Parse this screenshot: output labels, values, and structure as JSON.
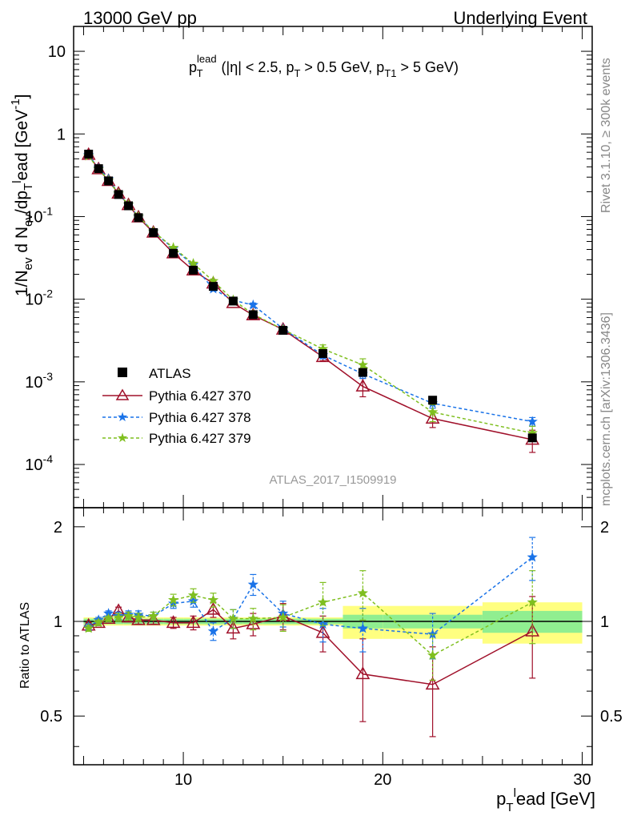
{
  "header": {
    "left": "13000 GeV pp",
    "right": "Underlying Event"
  },
  "side_labels": {
    "rivet": "Rivet 3.1.10, ≥ 300k events",
    "mcplots": "mcplots.cern.ch [arXiv:1306.3436]"
  },
  "analysis_tag": "ATLAS_2017_I1509919",
  "colors": {
    "atlas": "#000000",
    "p370": "#a0102a",
    "p378": "#1a73e8",
    "p379": "#7fbf1f",
    "band_inner": "#90ee90",
    "band_outer": "#ffff80"
  },
  "chart_data": [
    {
      "type": "scatter",
      "panel": "main",
      "title": "p_T^lead (|η| < 2.5, p_T > 0.5 GeV, p_T1 > 5 GeV)",
      "ylabel": "1/N_ev d N_ev/dp_T^lead [GeV^-1]",
      "ylog": true,
      "xlim": [
        4.5,
        30.5
      ],
      "ylim": [
        3e-05,
        20
      ],
      "y_ticks": [
        "10^-4",
        "10^-3",
        "10^-2",
        "10^-1",
        "1",
        "10"
      ],
      "legend_position": "lower-left",
      "series": [
        {
          "name": "ATLAS",
          "color": "#000000",
          "marker": "square",
          "x": [
            5.25,
            5.75,
            6.25,
            6.75,
            7.25,
            7.75,
            8.5,
            9.5,
            10.5,
            11.5,
            12.5,
            13.5,
            15,
            17,
            19,
            22.5,
            27.5
          ],
          "y": [
            0.57,
            0.38,
            0.27,
            0.185,
            0.135,
            0.097,
            0.064,
            0.036,
            0.0225,
            0.0143,
            0.0095,
            0.0065,
            0.0042,
            0.0022,
            0.0013,
            0.0006,
            0.00021
          ]
        },
        {
          "name": "Pythia 6.427 370",
          "color": "#a0102a",
          "marker": "triangle",
          "line": "solid",
          "x": [
            5.25,
            5.75,
            6.25,
            6.75,
            7.25,
            7.75,
            8.5,
            9.5,
            10.5,
            11.5,
            12.5,
            13.5,
            15,
            17,
            19,
            22.5,
            27.5
          ],
          "y": [
            0.56,
            0.375,
            0.27,
            0.19,
            0.138,
            0.098,
            0.064,
            0.036,
            0.0223,
            0.0155,
            0.009,
            0.0064,
            0.0043,
            0.002,
            0.00088,
            0.00036,
            0.0002
          ],
          "err": [
            0.01,
            0.007,
            0.005,
            0.004,
            0.003,
            0.002,
            0.0015,
            0.0009,
            0.0007,
            0.0006,
            0.0004,
            0.0004,
            0.0003,
            0.0002,
            0.00022,
            8e-05,
            6e-05
          ]
        },
        {
          "name": "Pythia 6.427 378",
          "color": "#1a73e8",
          "marker": "star",
          "line": "dashed",
          "x": [
            5.25,
            5.75,
            6.25,
            6.75,
            7.25,
            7.75,
            8.5,
            9.5,
            10.5,
            11.5,
            12.5,
            13.5,
            15,
            17,
            19,
            22.5,
            27.5
          ],
          "y": [
            0.555,
            0.385,
            0.285,
            0.19,
            0.14,
            0.1,
            0.066,
            0.041,
            0.026,
            0.0133,
            0.0097,
            0.0085,
            0.0044,
            0.0021,
            0.00125,
            0.00055,
            0.00033
          ],
          "err": [
            0.01,
            0.007,
            0.005,
            0.004,
            0.003,
            0.002,
            0.0015,
            0.001,
            0.0008,
            0.0006,
            0.0004,
            0.0005,
            0.0003,
            0.0002,
            0.00015,
            7e-05,
            4e-05
          ]
        },
        {
          "name": "Pythia 6.427 379",
          "color": "#7fbf1f",
          "marker": "star",
          "line": "dashed",
          "x": [
            5.25,
            5.75,
            6.25,
            6.75,
            7.25,
            7.75,
            8.5,
            9.5,
            10.5,
            11.5,
            12.5,
            13.5,
            15,
            17,
            19,
            22.5,
            27.5
          ],
          "y": [
            0.54,
            0.375,
            0.275,
            0.19,
            0.14,
            0.1,
            0.066,
            0.042,
            0.027,
            0.0166,
            0.0098,
            0.0066,
            0.0043,
            0.0025,
            0.0016,
            0.00043,
            0.00024
          ],
          "err": [
            0.01,
            0.007,
            0.005,
            0.004,
            0.003,
            0.002,
            0.0015,
            0.001,
            0.0008,
            0.0007,
            0.0004,
            0.0004,
            0.0003,
            0.0003,
            0.0003,
            0.0001,
            5e-05
          ]
        }
      ]
    },
    {
      "type": "scatter",
      "panel": "ratio",
      "ylabel": "Ratio to ATLAS",
      "xlabel": "p_T^lead [GeV]",
      "xlim": [
        4.5,
        30.5
      ],
      "ylim": [
        0.35,
        2.3
      ],
      "x_ticks": [
        10,
        20,
        30
      ],
      "y_ticks": [
        0.5,
        1,
        2
      ],
      "reference_band": {
        "edges": [
          5,
          5.5,
          6,
          6.5,
          7,
          7.5,
          8,
          9,
          10,
          11,
          12,
          13,
          14,
          16,
          18,
          20,
          25,
          30
        ],
        "inner": [
          0.02,
          0.02,
          0.02,
          0.02,
          0.02,
          0.02,
          0.02,
          0.02,
          0.02,
          0.02,
          0.02,
          0.02,
          0.02,
          0.02,
          0.05,
          0.05,
          0.08
        ],
        "outer": [
          0.03,
          0.03,
          0.03,
          0.03,
          0.03,
          0.03,
          0.03,
          0.03,
          0.03,
          0.03,
          0.03,
          0.03,
          0.03,
          0.03,
          0.12,
          0.12,
          0.15
        ]
      },
      "series": [
        {
          "name": "Pythia 6.427 370",
          "color": "#a0102a",
          "marker": "triangle",
          "line": "solid",
          "x": [
            5.25,
            5.75,
            6.25,
            6.75,
            7.25,
            7.75,
            8.5,
            9.5,
            10.5,
            11.5,
            12.5,
            13.5,
            15,
            17,
            19,
            22.5,
            27.5
          ],
          "y": [
            0.97,
            0.99,
            1.02,
            1.08,
            1.03,
            1.01,
            1.01,
            0.99,
            0.99,
            1.09,
            0.95,
            0.98,
            1.04,
            0.92,
            0.68,
            0.63,
            0.93
          ],
          "err": [
            0.02,
            0.02,
            0.02,
            0.03,
            0.03,
            0.03,
            0.03,
            0.04,
            0.05,
            0.06,
            0.07,
            0.08,
            0.1,
            0.12,
            0.2,
            0.2,
            0.27
          ]
        },
        {
          "name": "Pythia 6.427 378",
          "color": "#1a73e8",
          "marker": "star",
          "line": "dashed",
          "x": [
            5.25,
            5.75,
            6.25,
            6.75,
            7.25,
            7.75,
            8.5,
            9.5,
            10.5,
            11.5,
            12.5,
            13.5,
            15,
            17,
            19,
            22.5,
            27.5
          ],
          "y": [
            0.96,
            1.01,
            1.06,
            1.04,
            1.05,
            1.05,
            1.04,
            1.14,
            1.16,
            0.93,
            1.02,
            1.31,
            1.06,
            0.98,
            0.95,
            0.91,
            1.6
          ],
          "err": [
            0.02,
            0.02,
            0.02,
            0.03,
            0.03,
            0.03,
            0.03,
            0.04,
            0.05,
            0.06,
            0.07,
            0.1,
            0.1,
            0.12,
            0.15,
            0.15,
            0.25
          ]
        },
        {
          "name": "Pythia 6.427 379",
          "color": "#7fbf1f",
          "marker": "star",
          "line": "dashed",
          "x": [
            5.25,
            5.75,
            6.25,
            6.75,
            7.25,
            7.75,
            8.5,
            9.5,
            10.5,
            11.5,
            12.5,
            13.5,
            15,
            17,
            19,
            22.5,
            27.5
          ],
          "y": [
            0.95,
            0.99,
            1.02,
            1.03,
            1.04,
            1.03,
            1.04,
            1.17,
            1.21,
            1.17,
            1.02,
            1.02,
            1.03,
            1.15,
            1.23,
            0.78,
            1.15
          ],
          "err": [
            0.02,
            0.02,
            0.02,
            0.03,
            0.03,
            0.03,
            0.03,
            0.05,
            0.06,
            0.06,
            0.07,
            0.08,
            0.1,
            0.18,
            0.22,
            0.13,
            0.3
          ]
        }
      ]
    }
  ]
}
